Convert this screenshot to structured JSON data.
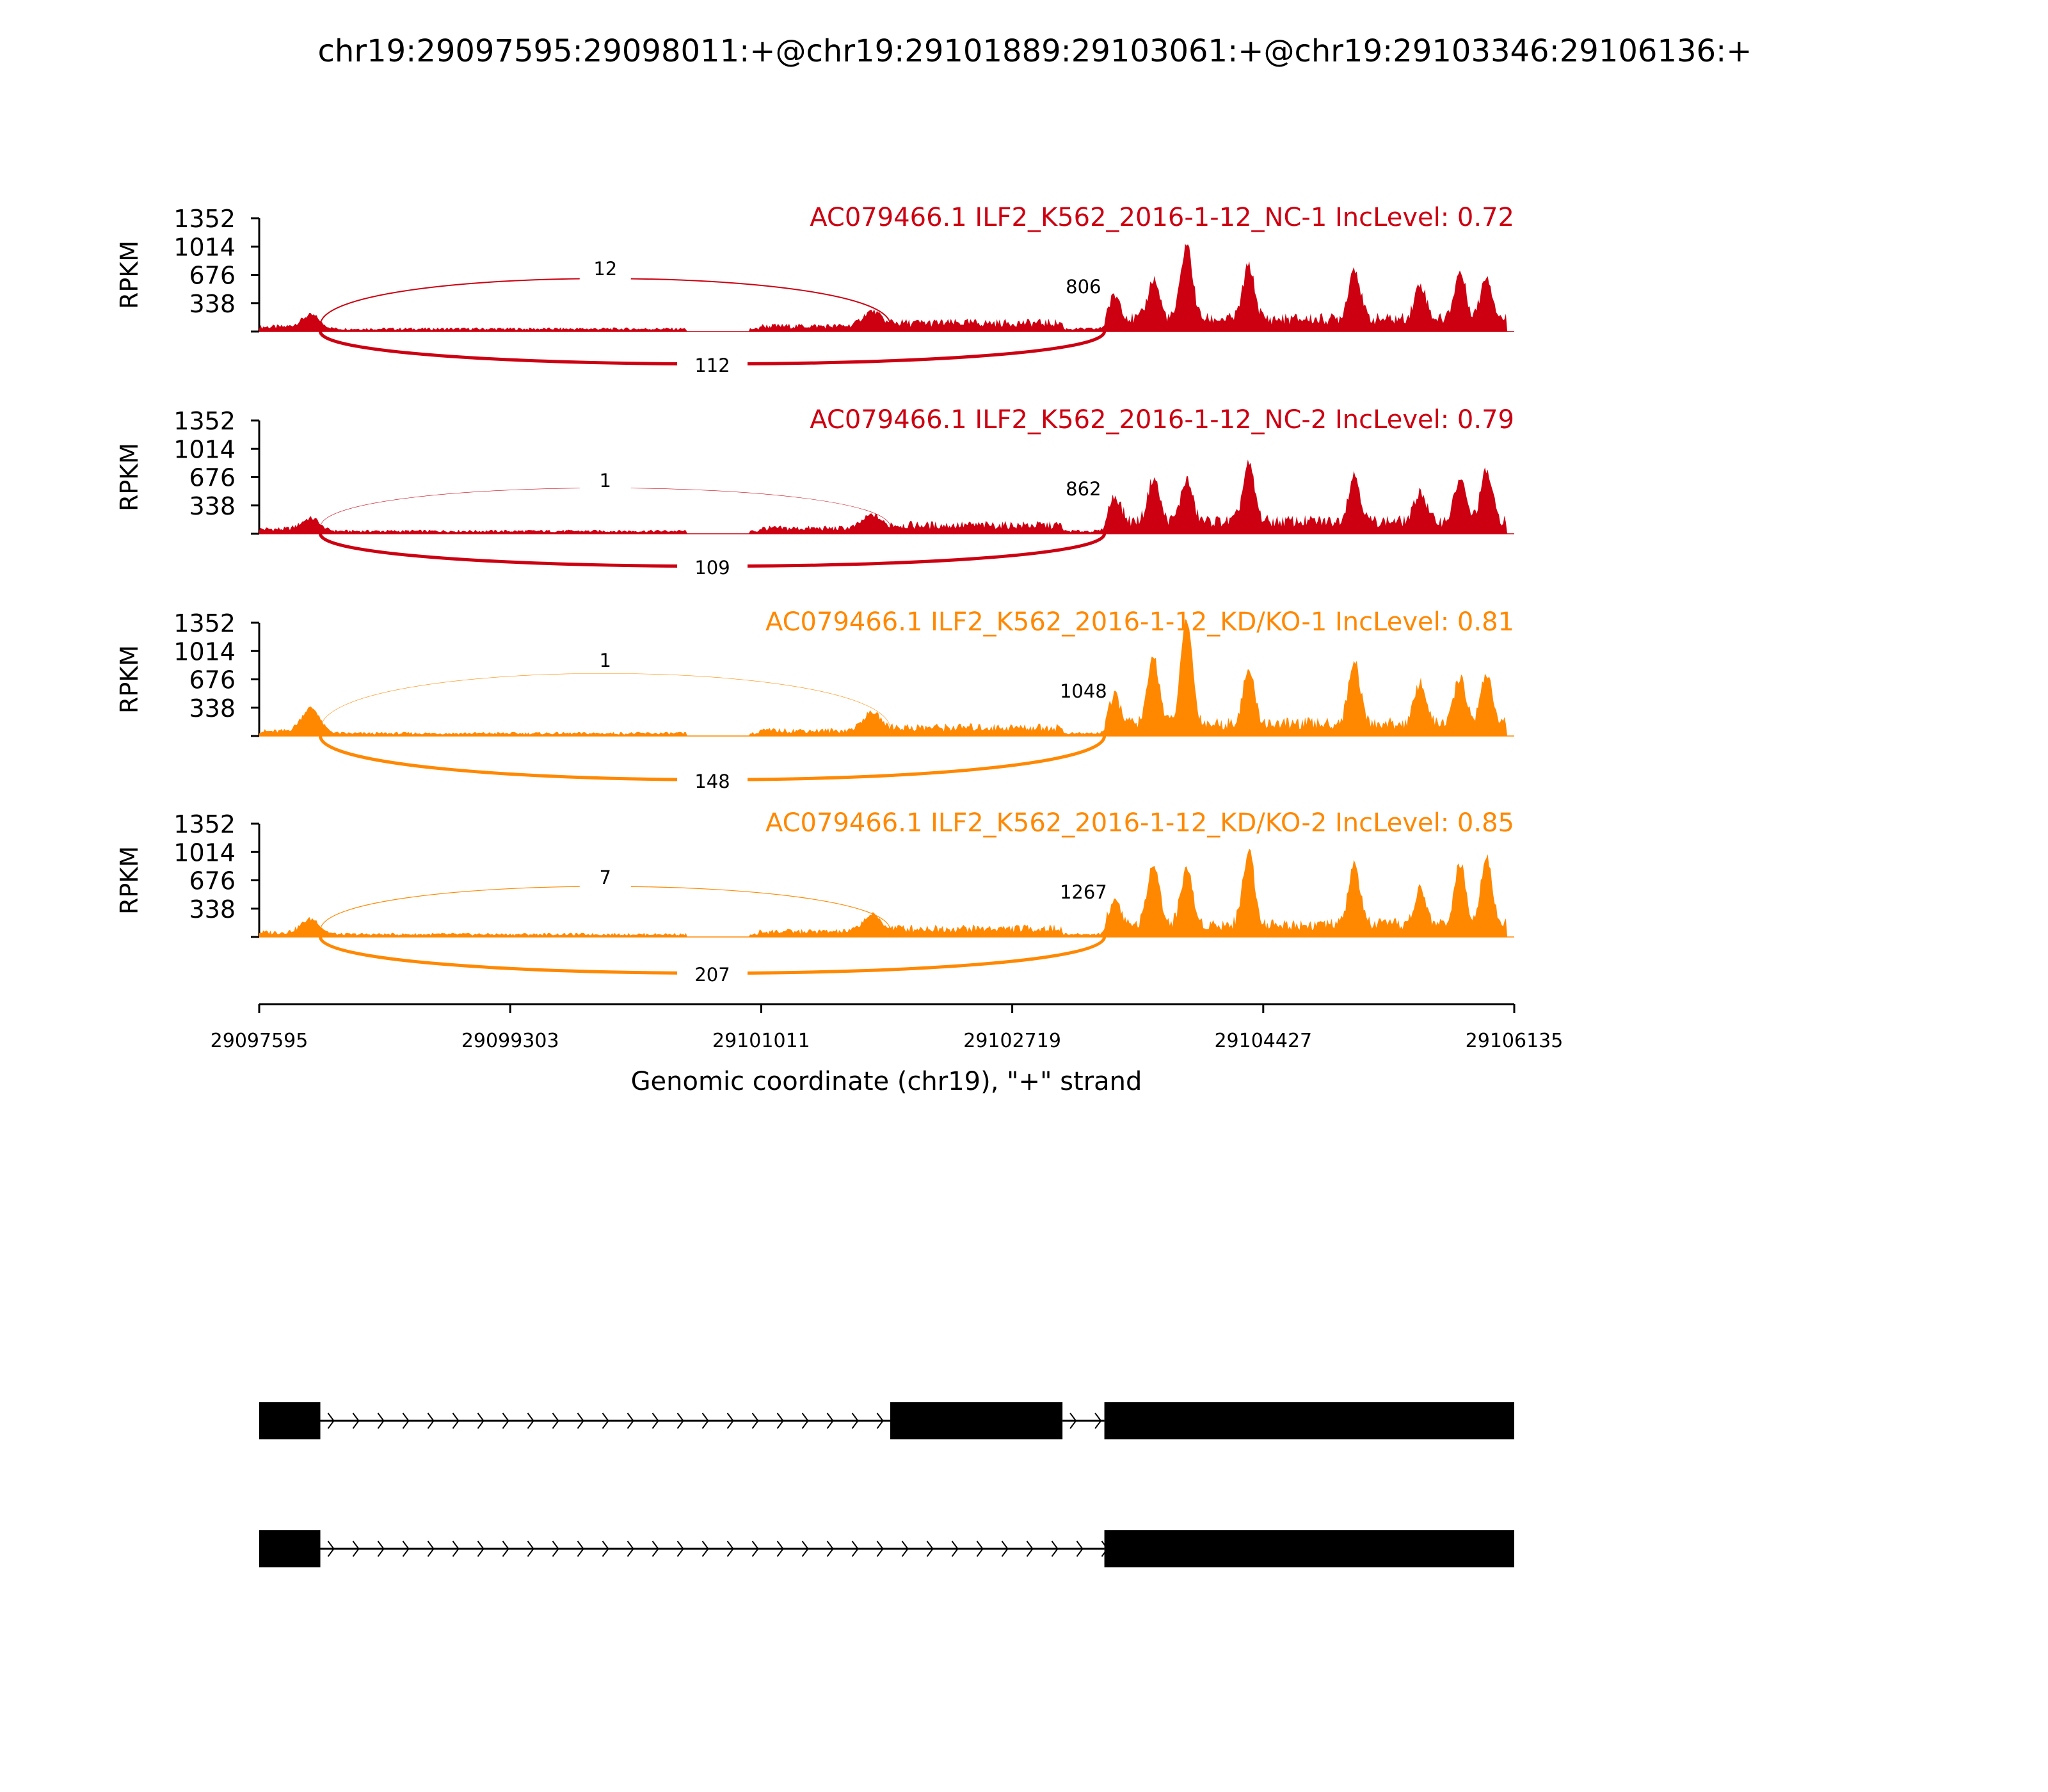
{
  "chart_data": {
    "type": "area",
    "title": "chr19:29097595:29098011:+@chr19:29101889:29103061:+@chr19:29103346:29106136:+",
    "xlabel": "Genomic coordinate (chr19), \"+\" strand",
    "ylabel": "RPKM",
    "xlim": [
      29097595,
      29106135
    ],
    "ylim": [
      0,
      1352
    ],
    "xticks": [
      "29097595",
      "29099303",
      "29101011",
      "29102719",
      "29104427",
      "29106135"
    ],
    "yticks": [
      "338",
      "676",
      "1014",
      "1352"
    ],
    "exons": [
      [
        29097595,
        29098011
      ],
      [
        29101889,
        29103061
      ],
      [
        29103346,
        29106136
      ]
    ],
    "isoforms": [
      [
        0,
        1,
        2
      ],
      [
        0,
        2
      ]
    ],
    "peak_positions": [
      29097946,
      29101766,
      29103420,
      29103681,
      29103906,
      29104328,
      29105047,
      29105496,
      29105766,
      29105946
    ],
    "series": [
      {
        "name": "AC079466.1 ILF2_K562_2016-1-12_NC-1 IncLevel: 0.72",
        "color": "#cc0011",
        "junction_inclusion_upper": "12",
        "junction_skip": "112",
        "junction_inner": "806",
        "peak_heights": [
          140,
          180,
          280,
          480,
          900,
          640,
          620,
          420,
          560,
          520
        ]
      },
      {
        "name": "AC079466.1 ILF2_K562_2016-1-12_NC-2 IncLevel: 0.79",
        "color": "#cc0011",
        "junction_inclusion_upper": "1",
        "junction_skip": "109",
        "junction_inner": "862",
        "peak_heights": [
          130,
          160,
          300,
          520,
          500,
          680,
          560,
          360,
          500,
          600
        ]
      },
      {
        "name": "AC079466.1 ILF2_K562_2016-1-12_KD/KO-1 IncLevel: 0.81",
        "color": "#ff8800",
        "junction_inclusion_upper": "1",
        "junction_skip": "148",
        "junction_inner": "1048",
        "peak_heights": [
          280,
          220,
          320,
          800,
          1250,
          640,
          760,
          500,
          560,
          600
        ]
      },
      {
        "name": "AC079466.1 ILF2_K562_2016-1-12_KD/KO-2 IncLevel: 0.85",
        "color": "#ff8800",
        "junction_inclusion_upper": "7",
        "junction_skip": "207",
        "junction_inner": "1267",
        "peak_heights": [
          160,
          200,
          300,
          760,
          680,
          900,
          720,
          420,
          720,
          820
        ]
      }
    ]
  }
}
